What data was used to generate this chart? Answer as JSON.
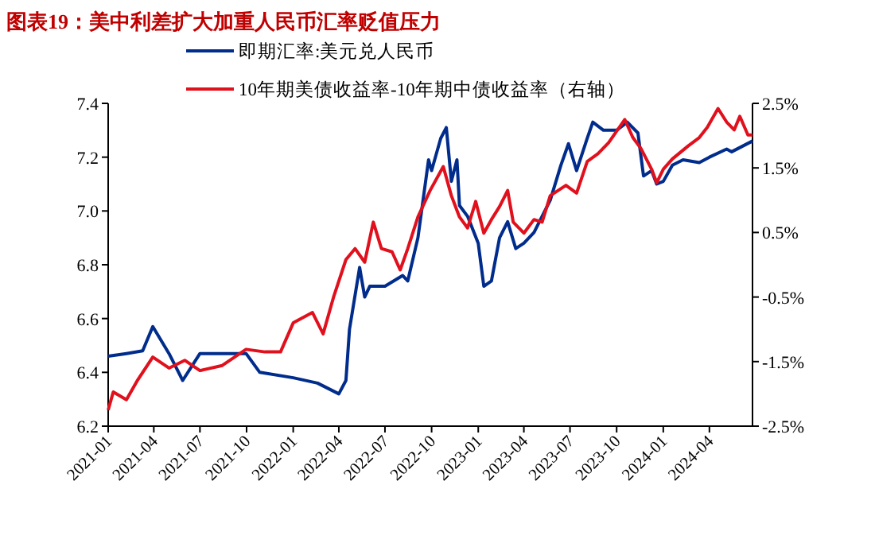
{
  "chart_data": {
    "type": "line",
    "title": "图表19：美中利差扩大加重人民币汇率贬值压力",
    "legend": "top",
    "grid": false,
    "xlim": [
      "2021-01-01",
      "2024-06-25"
    ],
    "xticks": [
      {
        "value": "2021-01-01",
        "label": "2021-01"
      },
      {
        "value": "2021-04-01",
        "label": "2021-04"
      },
      {
        "value": "2021-07-01",
        "label": "2021-07"
      },
      {
        "value": "2021-10-01",
        "label": "2021-10"
      },
      {
        "value": "2022-01-01",
        "label": "2022-01"
      },
      {
        "value": "2022-04-01",
        "label": "2022-04"
      },
      {
        "value": "2022-07-01",
        "label": "2022-07"
      },
      {
        "value": "2022-10-01",
        "label": "2022-10"
      },
      {
        "value": "2023-01-01",
        "label": "2023-01"
      },
      {
        "value": "2023-04-01",
        "label": "2023-04"
      },
      {
        "value": "2023-07-01",
        "label": "2023-07"
      },
      {
        "value": "2023-10-01",
        "label": "2023-10"
      },
      {
        "value": "2024-01-01",
        "label": "2024-01"
      },
      {
        "value": "2024-04-01",
        "label": "2024-04"
      }
    ],
    "ylim": [
      6.2,
      7.4
    ],
    "yticks": [
      6.2,
      6.4,
      6.6,
      6.8,
      {
        "value": 7.0,
        "label": "7.0"
      },
      7.2,
      7.4
    ],
    "y2lim": [
      -2.5,
      2.5
    ],
    "y2ticks": [
      {
        "value": -2.5,
        "label": "-2.5%"
      },
      {
        "value": -1.5,
        "label": "-1.5%"
      },
      {
        "value": -0.5,
        "label": "-0.5%"
      },
      {
        "value": 0.5,
        "label": "0.5%"
      },
      {
        "value": 1.5,
        "label": "1.5%"
      },
      {
        "value": 2.5,
        "label": "2.5%"
      }
    ],
    "series": [
      {
        "name": "即期汇率:美元兑人民币",
        "color": "#002c8c",
        "x": [
          "2021-01-01",
          "2021-02-06",
          "2021-03-10",
          "2021-03-30",
          "2021-05-01",
          "2021-05-28",
          "2021-07-01",
          "2021-09-30",
          "2021-10-27",
          "2022-01-01",
          "2022-02-18",
          "2022-04-01",
          "2022-04-15",
          "2022-04-22",
          "2022-05-12",
          "2022-05-22",
          "2022-06-01",
          "2022-07-01",
          "2022-08-05",
          "2022-08-15",
          "2022-09-04",
          "2022-09-25",
          "2022-10-01",
          "2022-10-19",
          "2022-10-30",
          "2022-11-09",
          "2022-11-20",
          "2022-11-25",
          "2022-12-11",
          "2023-01-01",
          "2023-01-12",
          "2023-01-27",
          "2023-02-12",
          "2023-02-28",
          "2023-03-16",
          "2023-04-01",
          "2023-04-21",
          "2023-05-23",
          "2023-06-13",
          "2023-06-28",
          "2023-07-14",
          "2023-08-04",
          "2023-08-15",
          "2023-09-05",
          "2023-10-01",
          "2023-10-22",
          "2023-11-12",
          "2023-11-23",
          "2023-12-09",
          "2023-12-19",
          "2024-01-01",
          "2024-01-19",
          "2024-02-09",
          "2024-03-12",
          "2024-04-01",
          "2024-05-05",
          "2024-05-15",
          "2024-06-25"
        ],
        "values": [
          6.46,
          6.47,
          6.48,
          6.57,
          6.47,
          6.37,
          6.47,
          6.47,
          6.4,
          6.38,
          6.36,
          6.32,
          6.37,
          6.56,
          6.79,
          6.68,
          6.72,
          6.72,
          6.76,
          6.74,
          6.9,
          7.19,
          7.15,
          7.27,
          7.31,
          7.11,
          7.19,
          7.02,
          6.98,
          6.88,
          6.72,
          6.74,
          6.9,
          6.96,
          6.86,
          6.88,
          6.92,
          7.04,
          7.17,
          7.25,
          7.15,
          7.27,
          7.33,
          7.3,
          7.3,
          7.33,
          7.29,
          7.13,
          7.15,
          7.1,
          7.11,
          7.17,
          7.19,
          7.18,
          7.2,
          7.23,
          7.22,
          7.26
        ]
      },
      {
        "name": "10年期美债收益率-10年期中债收益率（右轴）",
        "color": "#e0101c",
        "axis": "y2",
        "x": [
          "2021-01-01",
          "2021-01-11",
          "2021-02-06",
          "2021-02-27",
          "2021-03-30",
          "2021-05-01",
          "2021-06-01",
          "2021-07-01",
          "2021-08-14",
          "2021-09-30",
          "2021-11-06",
          "2021-12-07",
          "2022-01-01",
          "2022-02-08",
          "2022-03-01",
          "2022-03-22",
          "2022-04-15",
          "2022-05-03",
          "2022-05-22",
          "2022-06-08",
          "2022-06-24",
          "2022-07-15",
          "2022-07-31",
          "2022-08-15",
          "2022-09-04",
          "2022-09-28",
          "2022-10-24",
          "2022-11-09",
          "2022-11-25",
          "2022-12-11",
          "2022-12-27",
          "2023-01-12",
          "2023-01-27",
          "2023-02-12",
          "2023-02-28",
          "2023-03-11",
          "2023-04-01",
          "2023-04-21",
          "2023-05-07",
          "2023-05-23",
          "2023-06-23",
          "2023-07-14",
          "2023-08-04",
          "2023-08-25",
          "2023-09-15",
          "2023-10-17",
          "2023-11-02",
          "2023-11-18",
          "2023-12-09",
          "2023-12-19",
          "2024-01-01",
          "2024-01-19",
          "2024-02-19",
          "2024-03-12",
          "2024-03-28",
          "2024-04-18",
          "2024-05-05",
          "2024-05-20",
          "2024-05-31",
          "2024-06-16",
          "2024-06-25"
        ],
        "values": [
          -2.25,
          -1.97,
          -2.09,
          -1.8,
          -1.43,
          -1.6,
          -1.48,
          -1.64,
          -1.56,
          -1.31,
          -1.35,
          -1.35,
          -0.9,
          -0.74,
          -1.07,
          -0.49,
          0.08,
          0.25,
          0.04,
          0.66,
          0.25,
          0.2,
          -0.08,
          0.25,
          0.74,
          1.15,
          1.52,
          1.07,
          0.74,
          0.57,
          0.98,
          0.49,
          0.7,
          0.9,
          1.15,
          0.66,
          0.49,
          0.7,
          0.66,
          1.07,
          1.23,
          1.11,
          1.6,
          1.72,
          1.89,
          2.25,
          1.97,
          1.8,
          1.48,
          1.27,
          1.48,
          1.64,
          1.84,
          1.97,
          2.13,
          2.42,
          2.21,
          2.09,
          2.3,
          2.01,
          2.01
        ]
      }
    ]
  }
}
